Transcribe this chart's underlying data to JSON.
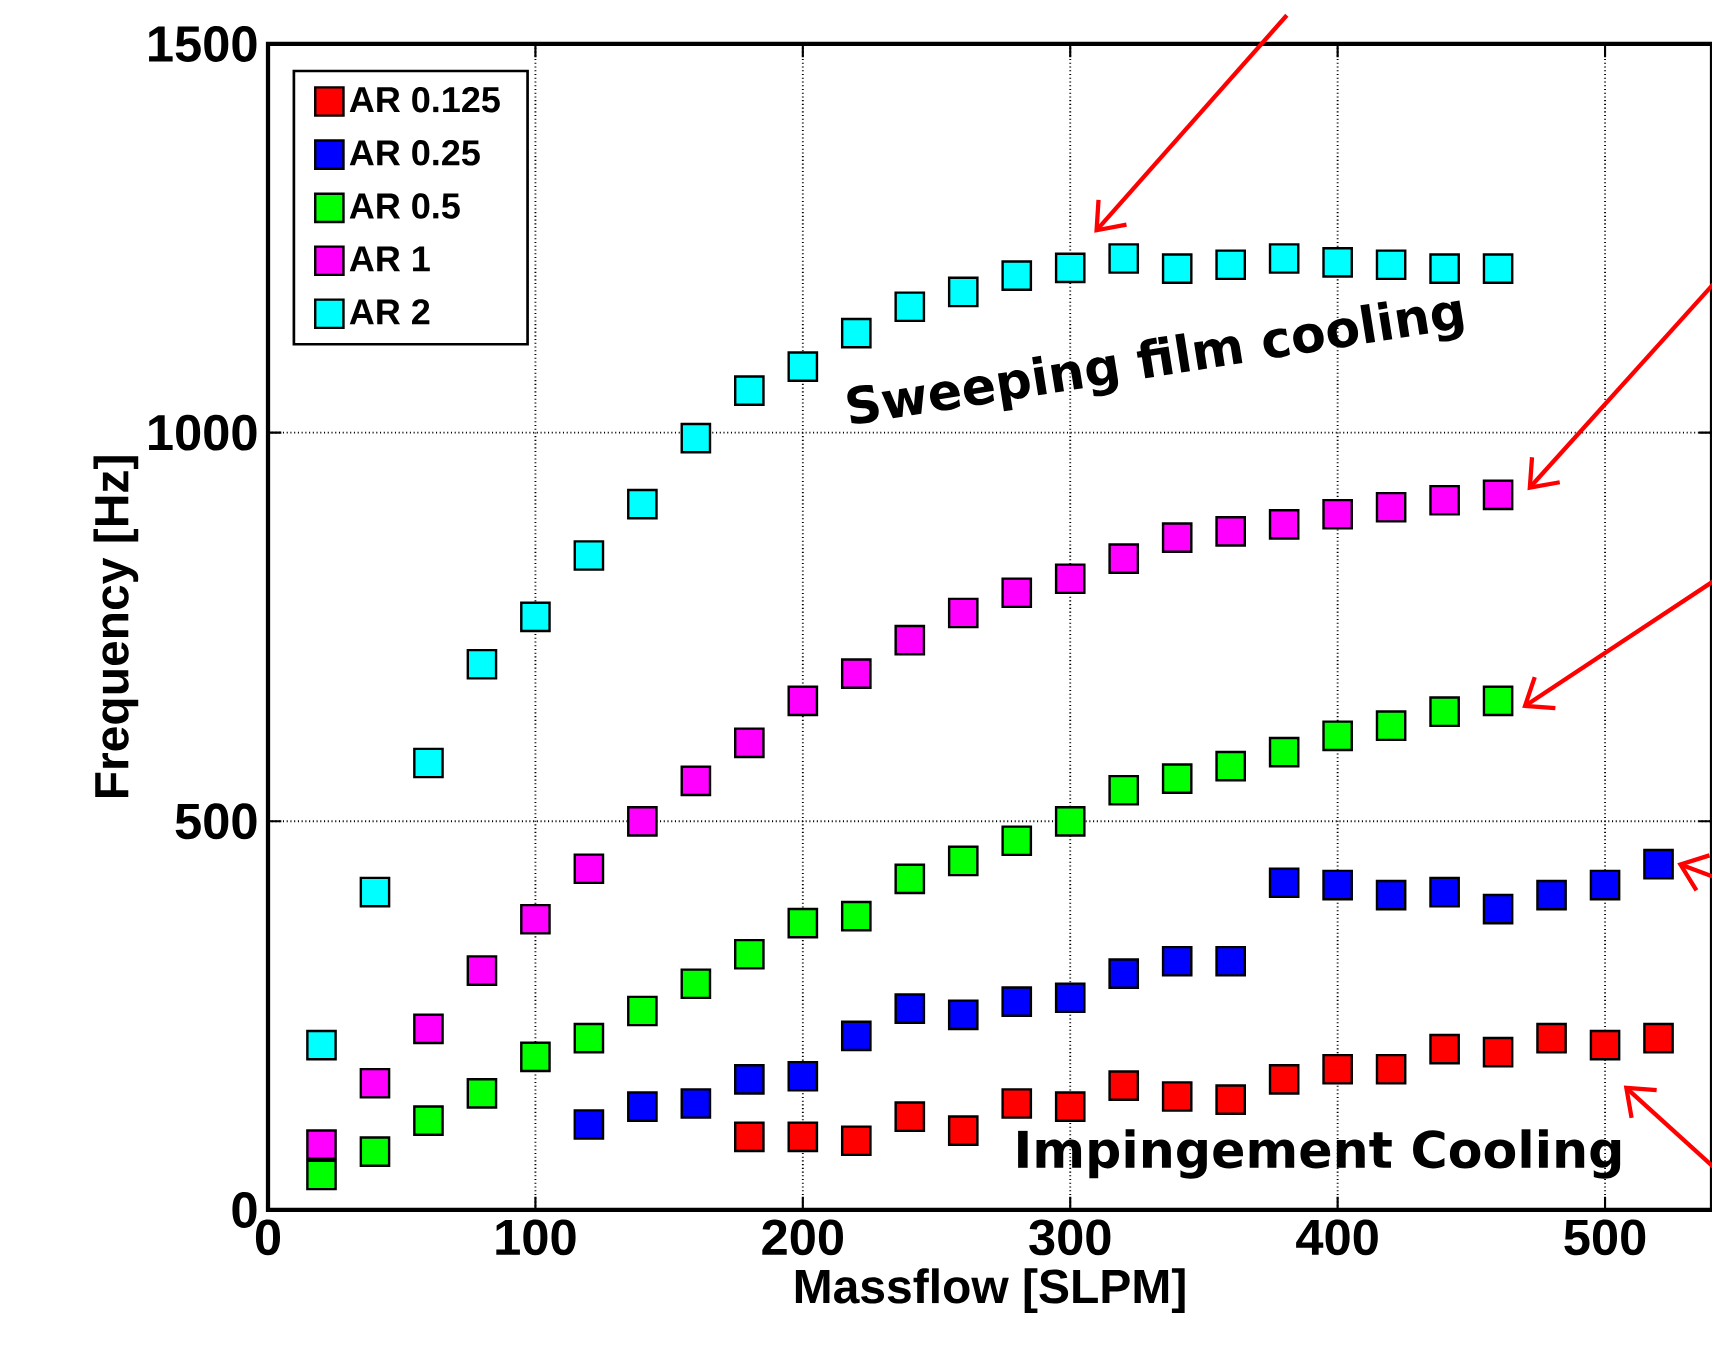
{
  "chart_data": {
    "type": "scatter",
    "xlabel": "Massflow [SLPM]",
    "ylabel": "Frequency [Hz]",
    "xlim": [
      0,
      540
    ],
    "xticks": [
      0,
      100,
      200,
      300,
      400,
      500
    ],
    "ylim": [
      0,
      1500
    ],
    "yticks": [
      0,
      500,
      1000,
      1500
    ],
    "grid": true,
    "legend": "top left",
    "marker": "square",
    "annotations": [
      "Sweeping film cooling",
      "Impingement Cooling"
    ],
    "series": [
      {
        "name": "AR 0.125",
        "color": "#ff0000",
        "x": [
          180,
          200,
          220,
          240,
          260,
          280,
          300,
          320,
          340,
          360,
          380,
          400,
          420,
          440,
          460,
          480,
          500,
          520
        ],
        "values": [
          94,
          94,
          89,
          120,
          102,
          137,
          133,
          160,
          146,
          142,
          168,
          181,
          181,
          207,
          203,
          221,
          212,
          221
        ]
      },
      {
        "name": "AR 0.25",
        "color": "#0000ff",
        "x": [
          120,
          140,
          160,
          180,
          200,
          220,
          240,
          260,
          280,
          300,
          320,
          340,
          360,
          380,
          400,
          420,
          440,
          460,
          480,
          500,
          520
        ],
        "values": [
          110,
          133,
          137,
          168,
          172,
          224,
          259,
          251,
          268,
          273,
          304,
          320,
          320,
          421,
          418,
          405,
          409,
          387,
          405,
          418,
          445
        ]
      },
      {
        "name": "AR 0.5",
        "color": "#00ff00",
        "x": [
          20,
          40,
          60,
          80,
          100,
          120,
          140,
          160,
          180,
          200,
          220,
          240,
          260,
          280,
          300,
          320,
          340,
          360,
          380,
          400,
          420,
          440,
          460
        ],
        "values": [
          45,
          75,
          115,
          150,
          197,
          221,
          256,
          291,
          329,
          369,
          378,
          426,
          449,
          475,
          500,
          540,
          555,
          571,
          589,
          610,
          623,
          641,
          655
        ]
      },
      {
        "name": "AR 1",
        "color": "#ff00ff",
        "x": [
          20,
          40,
          60,
          80,
          100,
          120,
          140,
          160,
          180,
          200,
          220,
          240,
          260,
          280,
          300,
          320,
          340,
          360,
          380,
          400,
          420,
          440,
          460
        ],
        "values": [
          84,
          163,
          233,
          308,
          374,
          439,
          500,
          552,
          601,
          655,
          690,
          733,
          768,
          794,
          812,
          838,
          865,
          873,
          882,
          895,
          904,
          913,
          920
        ]
      },
      {
        "name": "AR 2",
        "color": "#00ffff",
        "x": [
          20,
          40,
          60,
          80,
          100,
          120,
          140,
          160,
          180,
          200,
          220,
          240,
          260,
          280,
          300,
          320,
          340,
          360,
          380,
          400,
          420,
          440,
          460
        ],
        "values": [
          212,
          409,
          575,
          702,
          763,
          842,
          908,
          993,
          1054,
          1085,
          1128,
          1162,
          1181,
          1202,
          1212,
          1224,
          1211,
          1216,
          1224,
          1219,
          1216,
          1211,
          1211
        ]
      }
    ]
  }
}
